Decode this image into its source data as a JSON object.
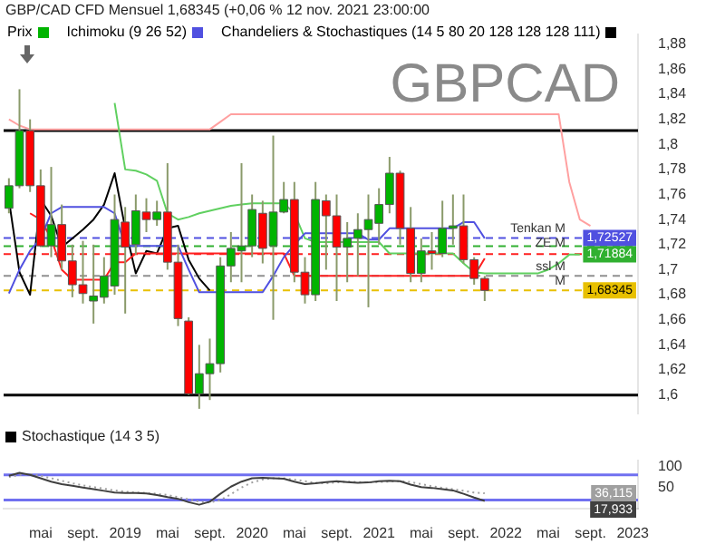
{
  "chart_data": [
    {
      "type": "candlestick",
      "title": "GBP/CAD CFD Mensuel 1,68345 (+0,06 % 12 nov. 2021 23:00:00",
      "annotations": [
        "GBPCAD",
        {
          "text": "1,72527",
          "y": 1.72527
        },
        {
          "text": "1,71884",
          "y": 1.71884
        },
        {
          "text": "1,68345",
          "y": 1.68345
        }
      ],
      "legend": "top left",
      "tick_labels": "y",
      "grid": false,
      "categories": [
        null,
        null,
        null,
        null,
        null,
        null,
        null,
        null,
        null,
        null,
        null,
        null,
        null,
        null,
        null,
        null,
        null,
        null,
        null,
        null,
        null,
        null,
        null,
        null,
        null,
        null,
        null,
        null,
        null,
        null,
        null,
        null,
        null,
        null,
        null,
        null,
        null,
        null,
        null,
        null,
        null,
        null,
        null,
        null,
        null,
        null,
        null,
        null,
        null,
        null,
        null,
        null,
        null,
        null,
        null,
        null,
        null,
        null,
        null,
        null
      ],
      "ylim": [
        1.585,
        1.888
      ],
      "yticks": [
        {
          "value": 1.6,
          "label": "1,6"
        },
        {
          "value": 1.62,
          "label": "1,62"
        },
        {
          "value": 1.64,
          "label": "1,64"
        },
        {
          "value": 1.66,
          "label": "1,66"
        },
        {
          "value": 1.68,
          "label": "1,68"
        },
        {
          "value": 1.7,
          "label": "1,7"
        },
        {
          "value": 1.72,
          "label": "1,72"
        },
        {
          "value": 1.74,
          "label": "1,74"
        },
        {
          "value": 1.76,
          "label": "1,76"
        },
        {
          "value": 1.78,
          "label": "1,78"
        },
        {
          "value": 1.8,
          "label": "1,8"
        },
        {
          "value": 1.82,
          "label": "1,82"
        },
        {
          "value": 1.84,
          "label": "1,84"
        },
        {
          "value": 1.86,
          "label": "1,86"
        },
        {
          "value": 1.88,
          "label": "1,88"
        }
      ],
      "series": [
        {
          "name": "Prix",
          "colors": [
            "#00b400",
            "#00b400",
            "#ff0000",
            "#ff0000",
            "#00b400",
            "#ff0000",
            "#ff0000",
            "#ff0000",
            "#00b400",
            "#00b400",
            "#00b400",
            "#ff0000",
            "#00b400",
            "#ff0000",
            "#00b400",
            "#ff0000",
            "#ff0000",
            "#ff0000",
            "#00b400",
            "#00b400",
            "#00b400",
            "#00b400",
            "#00b400",
            "#00b400",
            "#ff0000",
            "#00b400",
            "#00b400",
            "#ff0000",
            "#ff0000",
            "#00b400",
            "#ff0000",
            "#ff0000",
            "#00b400",
            "#00b400",
            "#00b400",
            "#00b400",
            "#00b400",
            "#ff0000",
            "#ff0000",
            "#00b400",
            "#ff0000",
            "#00b400",
            "#00b400",
            "#ff0000",
            "#ff0000",
            "#ff0000",
            null,
            null,
            null,
            null,
            null,
            null,
            null,
            null,
            null,
            null,
            null,
            null,
            null,
            null
          ],
          "ohlc": [
            [
              1.749,
              1.773,
              1.745,
              1.767
            ],
            [
              1.767,
              1.844,
              1.765,
              1.811
            ],
            [
              1.811,
              1.82,
              1.762,
              1.767
            ],
            [
              1.767,
              1.78,
              1.718,
              1.719
            ],
            [
              1.719,
              1.782,
              1.71,
              1.736
            ],
            [
              1.736,
              1.752,
              1.7,
              1.707
            ],
            [
              1.707,
              1.72,
              1.678,
              1.688
            ],
            [
              1.688,
              1.723,
              1.673,
              1.681
            ],
            [
              1.675,
              1.72,
              1.657,
              1.679
            ],
            [
              1.678,
              1.71,
              1.673,
              1.695
            ],
            [
              1.687,
              1.76,
              1.68,
              1.74
            ],
            [
              1.738,
              1.75,
              1.665,
              1.718
            ],
            [
              1.72,
              1.76,
              1.712,
              1.747
            ],
            [
              1.746,
              1.757,
              1.73,
              1.74
            ],
            [
              1.74,
              1.755,
              1.735,
              1.746
            ],
            [
              1.746,
              1.785,
              1.7,
              1.706
            ],
            [
              1.706,
              1.72,
              1.655,
              1.661
            ],
            [
              1.659,
              1.662,
              1.6,
              1.601
            ],
            [
              1.601,
              1.64,
              1.589,
              1.617
            ],
            [
              1.617,
              1.645,
              1.596,
              1.625
            ],
            [
              1.625,
              1.71,
              1.618,
              1.703
            ],
            [
              1.703,
              1.73,
              1.69,
              1.717
            ],
            [
              1.715,
              1.785,
              1.69,
              1.719
            ],
            [
              1.719,
              1.76,
              1.71,
              1.748
            ],
            [
              1.745,
              1.755,
              1.705,
              1.717
            ],
            [
              1.719,
              1.807,
              1.66,
              1.746
            ],
            [
              1.746,
              1.77,
              1.745,
              1.756
            ],
            [
              1.756,
              1.77,
              1.69,
              1.698
            ],
            [
              1.698,
              1.71,
              1.673,
              1.68
            ],
            [
              1.68,
              1.77,
              1.675,
              1.756
            ],
            [
              1.755,
              1.76,
              1.7,
              1.743
            ],
            [
              1.743,
              1.76,
              1.675,
              1.718
            ],
            [
              1.718,
              1.738,
              1.69,
              1.725
            ],
            [
              1.725,
              1.745,
              1.695,
              1.732
            ],
            [
              1.732,
              1.76,
              1.67,
              1.74
            ],
            [
              1.737,
              1.765,
              1.72,
              1.752
            ],
            [
              1.752,
              1.79,
              1.745,
              1.777
            ],
            [
              1.777,
              1.779,
              1.72,
              1.733
            ],
            [
              1.733,
              1.75,
              1.69,
              1.697
            ],
            [
              1.697,
              1.725,
              1.69,
              1.715
            ],
            [
              1.715,
              1.73,
              1.7,
              1.713
            ],
            [
              1.713,
              1.755,
              1.71,
              1.733
            ],
            [
              1.733,
              1.76,
              1.72,
              1.735
            ],
            [
              1.735,
              1.76,
              1.705,
              1.708
            ],
            [
              1.708,
              1.71,
              1.688,
              1.693
            ],
            [
              1.693,
              1.695,
              1.675,
              1.68345
            ],
            null,
            null,
            null,
            null,
            null,
            null,
            null,
            null,
            null,
            null,
            null,
            null,
            null,
            null
          ]
        },
        {
          "name": "Ichimoku (9 26 52)",
          "type": "line",
          "color": "#5050e0",
          "values": [
            1.681,
            1.7,
            1.715,
            1.725,
            1.745,
            1.75,
            1.75,
            1.75,
            1.75,
            1.75,
            1.745,
            1.719,
            1.719,
            1.719,
            1.719,
            1.719,
            1.719,
            1.7,
            1.682,
            1.682,
            1.682,
            1.682,
            1.682,
            1.682,
            1.682,
            1.695,
            1.71,
            1.72,
            1.729,
            1.729,
            1.729,
            1.729,
            1.729,
            1.729,
            1.724,
            1.724,
            1.733,
            1.733,
            1.733,
            1.733,
            1.733,
            1.733,
            1.733,
            1.738,
            1.738,
            1.725,
            null,
            null,
            null,
            null,
            null,
            null,
            null,
            null,
            null,
            null,
            null,
            null,
            null,
            null
          ]
        },
        {
          "type": "line",
          "color": "#ff2020",
          "values": [
            null,
            null,
            1.745,
            1.74,
            1.725,
            1.7,
            1.692,
            1.692,
            1.692,
            1.692,
            1.706,
            1.706,
            1.713,
            1.713,
            1.713,
            1.713,
            1.713,
            1.713,
            1.713,
            1.713,
            1.713,
            1.713,
            1.713,
            1.713,
            1.713,
            1.713,
            1.713,
            1.695,
            1.695,
            1.695,
            1.695,
            1.695,
            1.695,
            1.695,
            1.695,
            1.695,
            1.695,
            1.695,
            1.695,
            1.695,
            1.695,
            1.695,
            1.695,
            1.695,
            1.695,
            1.709,
            null,
            null,
            null,
            null,
            null,
            null,
            null,
            null,
            null,
            null,
            null,
            null,
            null,
            null
          ]
        },
        {
          "type": "line",
          "color": "#60d060",
          "values": [
            null,
            null,
            null,
            null,
            null,
            null,
            null,
            null,
            null,
            null,
            1.833,
            1.78,
            1.779,
            1.776,
            1.771,
            1.745,
            1.74,
            1.742,
            1.745,
            1.747,
            1.749,
            1.751,
            1.752,
            1.753,
            1.753,
            1.753,
            1.753,
            1.745,
            1.725,
            1.722,
            1.722,
            1.722,
            1.722,
            1.722,
            1.722,
            1.722,
            1.713,
            1.713,
            1.713,
            1.713,
            1.713,
            1.713,
            1.713,
            1.705,
            1.698,
            1.697,
            1.697,
            1.697,
            1.697,
            1.697,
            1.697,
            1.7,
            1.705,
            1.712,
            1.712,
            null,
            null,
            null,
            null,
            null
          ]
        },
        {
          "type": "line",
          "color": "#ffa0a0",
          "values": [
            1.82,
            1.815,
            1.812,
            1.812,
            1.812,
            1.812,
            1.812,
            1.812,
            1.812,
            1.812,
            1.812,
            1.812,
            1.812,
            1.812,
            1.812,
            1.812,
            1.812,
            1.812,
            1.812,
            1.812,
            1.818,
            1.824,
            1.824,
            1.824,
            1.824,
            1.824,
            1.824,
            1.824,
            1.824,
            1.824,
            1.824,
            1.824,
            1.824,
            1.824,
            1.824,
            1.824,
            1.824,
            1.824,
            1.824,
            1.824,
            1.824,
            1.824,
            1.824,
            1.824,
            1.824,
            1.824,
            1.824,
            1.824,
            1.824,
            1.824,
            1.824,
            1.824,
            1.824,
            1.77,
            1.74,
            1.735,
            null,
            null,
            null,
            null
          ]
        },
        {
          "name": "Chandeliers & Stochastiques (14 5 80 20 128 128 128 111)",
          "type": "line",
          "color": "#000000",
          "values": [
            1.756,
            1.698,
            1.68,
            1.756,
            1.743,
            1.718,
            1.725,
            1.732,
            1.74,
            1.752,
            1.777,
            1.733,
            1.697,
            1.715,
            1.713,
            1.733,
            1.735,
            1.708,
            1.693,
            1.68345,
            null,
            null,
            null,
            null,
            null,
            null,
            null,
            null,
            null,
            null,
            null,
            null,
            null,
            null,
            null,
            null,
            null,
            null,
            null,
            null,
            null,
            null,
            null,
            null,
            null,
            null,
            null,
            null,
            null,
            null,
            null,
            null,
            null,
            null,
            null,
            null,
            null,
            null,
            null,
            null
          ]
        }
      ],
      "ref_lines": [
        {
          "axis": "y",
          "value": 1.811,
          "color": "#000000",
          "line_style": "solid"
        },
        {
          "axis": "y",
          "value": 1.6,
          "color": "#000000",
          "line_style": "solid"
        },
        {
          "axis": "y",
          "value": 1.72527,
          "label": "Tenkan M",
          "color": "#5050e0",
          "line_style": "dashed"
        },
        {
          "axis": "y",
          "value": 1.71884,
          "label": "ZE M",
          "color": "#30b030",
          "line_style": "dashed"
        },
        {
          "axis": "y",
          "value": 1.71247,
          "color": "#ff2020",
          "line_style": "dashed"
        },
        {
          "axis": "y",
          "value": 1.695,
          "label": "ssl M",
          "color": "#909090",
          "line_style": "dashed"
        },
        {
          "axis": "y",
          "value": 1.68345,
          "label": "M",
          "color": "#e8c000",
          "line_style": "dashed"
        }
      ]
    },
    {
      "type": "line",
      "title": "Stochastique (14 3 5)",
      "grid": false,
      "annotations": [
        {
          "text": "36,115",
          "y": 36.115
        },
        {
          "text": "17,933",
          "y": 17.933
        }
      ],
      "categories": [
        null,
        null,
        null,
        "mai",
        null,
        null,
        null,
        "sept.",
        null,
        null,
        null,
        "2019",
        null,
        null,
        null,
        "mai",
        null,
        null,
        null,
        "sept.",
        null,
        null,
        null,
        "2020",
        null,
        null,
        null,
        "mai",
        null,
        null,
        null,
        "sept.",
        null,
        null,
        null,
        "2021",
        null,
        null,
        null,
        "mai",
        null,
        null,
        null,
        "sept.",
        null,
        null,
        null,
        "2022",
        null,
        null,
        null,
        "mai",
        null,
        null,
        null,
        "sept.",
        null,
        null,
        null,
        "2023"
      ],
      "ylim": [
        0,
        115
      ],
      "yticks": [
        50,
        100
      ],
      "series": [
        {
          "color": "#404040",
          "values": [
            78,
            85,
            80,
            72,
            64,
            58,
            54,
            50,
            46,
            42,
            38,
            37,
            37,
            36,
            32,
            27,
            23,
            15,
            9,
            16,
            35,
            52,
            64,
            72,
            73,
            72,
            71,
            64,
            58,
            60,
            63,
            65,
            63,
            61,
            62,
            65,
            66,
            65,
            57,
            51,
            49,
            46,
            43,
            35,
            26,
            17.933,
            null,
            null,
            null,
            null,
            null,
            null,
            null,
            null,
            null,
            null,
            null,
            null,
            null,
            null
          ]
        },
        {
          "color": "#a0a0a0",
          "line_style": "dotted",
          "values": [
            75,
            80,
            82,
            78,
            72,
            66,
            60,
            55,
            51,
            47,
            43,
            40,
            38,
            37,
            35,
            32,
            27,
            22,
            16,
            14,
            20,
            34,
            50,
            62,
            69,
            72,
            72,
            69,
            65,
            61,
            60,
            62,
            64,
            63,
            62,
            63,
            64,
            65,
            63,
            58,
            53,
            49,
            46,
            42,
            38,
            36.115,
            null,
            null,
            null,
            null,
            null,
            null,
            null,
            null,
            null,
            null,
            null,
            null,
            null,
            null
          ]
        }
      ],
      "ref_lines": [
        {
          "axis": "y",
          "value": 80,
          "color": "#7070f0",
          "line_style": "solid"
        },
        {
          "axis": "y",
          "value": 20,
          "color": "#7070f0",
          "line_style": "solid"
        }
      ]
    }
  ]
}
